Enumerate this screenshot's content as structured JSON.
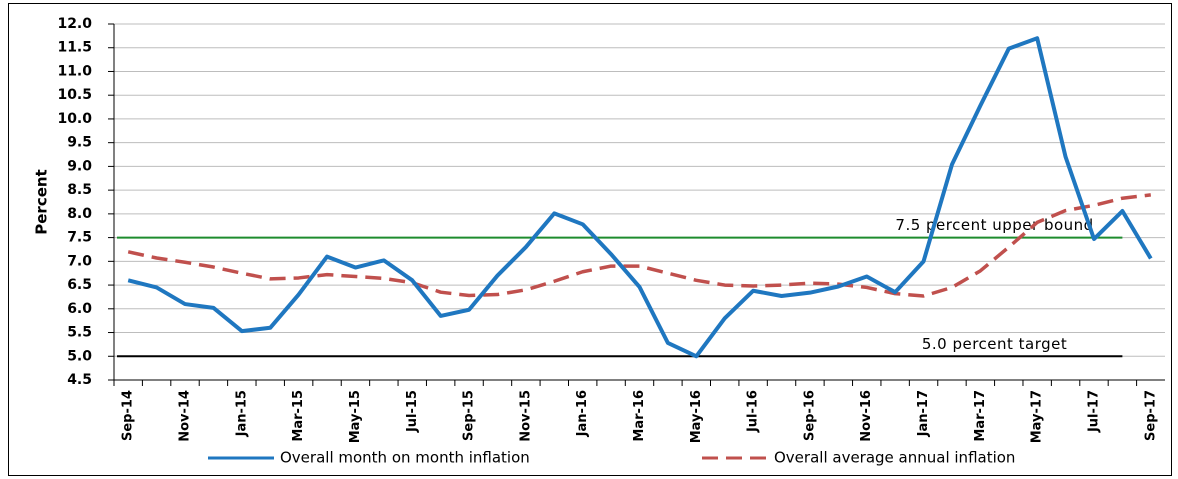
{
  "chart_data": {
    "type": "line",
    "y_label": "Percent",
    "categories": [
      "Sep-14",
      null,
      "Nov-14",
      null,
      "Jan-15",
      null,
      "Mar-15",
      null,
      "May-15",
      null,
      "Jul-15",
      null,
      "Sep-15",
      null,
      "Nov-15",
      null,
      "Jan-16",
      null,
      "Mar-16",
      null,
      "May-16",
      null,
      "Jul-16",
      null,
      "Sep-16",
      null,
      "Nov-16",
      null,
      "Jan-17",
      null,
      "Mar-17",
      null,
      "May-17",
      null,
      "Jul-17",
      null,
      "Sep-17"
    ],
    "series": [
      {
        "name": "Overall month on month inflation",
        "color": "#1f77c0",
        "dash": false,
        "values": [
          6.6,
          6.45,
          6.1,
          6.02,
          5.53,
          5.6,
          6.3,
          7.1,
          6.87,
          7.02,
          6.6,
          5.85,
          5.98,
          6.7,
          7.3,
          8.01,
          7.78,
          7.15,
          6.46,
          5.28,
          5.0,
          5.8,
          6.38,
          6.27,
          6.34,
          6.47,
          6.68,
          6.35,
          7.0,
          9.04,
          10.28,
          11.48,
          11.7,
          9.2,
          7.47,
          8.06,
          7.06
        ]
      },
      {
        "name": "Overall average annual inflation",
        "color": "#c0504d",
        "dash": true,
        "values": [
          7.2,
          7.07,
          6.98,
          6.88,
          6.75,
          6.63,
          6.65,
          6.72,
          6.68,
          6.64,
          6.55,
          6.35,
          6.28,
          6.3,
          6.4,
          6.58,
          6.78,
          6.9,
          6.9,
          6.75,
          6.6,
          6.5,
          6.48,
          6.5,
          6.54,
          6.52,
          6.45,
          6.32,
          6.27,
          6.45,
          6.8,
          7.3,
          7.82,
          8.07,
          8.18,
          8.33,
          8.4
        ]
      }
    ],
    "reference_lines": [
      {
        "value": 7.5,
        "color": "#1e8c2e",
        "label": "7.5 percent upper bound"
      },
      {
        "value": 5.0,
        "color": "#000000",
        "label": "5.0 percent target"
      }
    ],
    "ylim": [
      4.5,
      12.0
    ],
    "yticks": [
      {
        "value": 4.5,
        "label": "4.5"
      },
      {
        "value": 5.0,
        "label": "5.0"
      },
      {
        "value": 5.5,
        "label": "5.5"
      },
      {
        "value": 6.0,
        "label": "6.0"
      },
      {
        "value": 6.5,
        "label": "6.5"
      },
      {
        "value": 7.0,
        "label": "7.0"
      },
      {
        "value": 7.5,
        "label": "7.5"
      },
      {
        "value": 8.0,
        "label": "8.0"
      },
      {
        "value": 8.5,
        "label": "8.5"
      },
      {
        "value": 9.0,
        "label": "9.0"
      },
      {
        "value": 9.5,
        "label": "9.5"
      },
      {
        "value": 10.0,
        "label": "10.0"
      },
      {
        "value": 10.5,
        "label": "10.5"
      },
      {
        "value": 11.0,
        "label": "11.0"
      },
      {
        "value": 11.5,
        "label": "11.5"
      },
      {
        "value": 12.0,
        "label": "12.0"
      }
    ],
    "grid": true,
    "legend": "bottom"
  }
}
